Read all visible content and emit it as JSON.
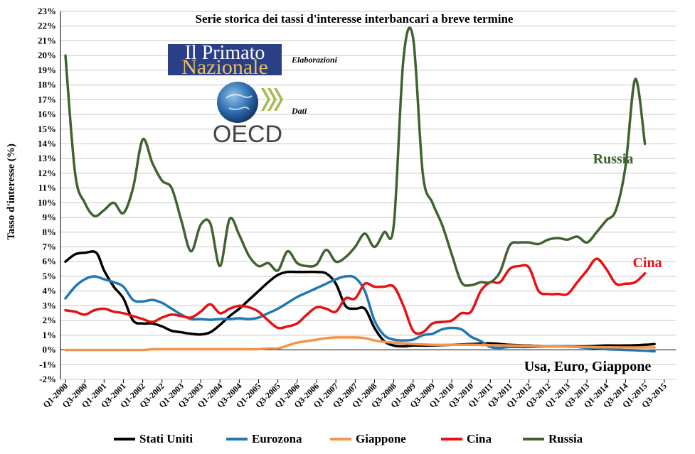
{
  "chart_data": {
    "type": "line",
    "title": "Serie storica dei tassi d'interesse interbancari  a breve termine",
    "ylabel": "Tasso d'interesse (%)",
    "xlabel": "",
    "ylim": [
      -2,
      23
    ],
    "y_ticks": [
      "-2%",
      "-1%",
      "0%",
      "1%",
      "2%",
      "3%",
      "4%",
      "5%",
      "6%",
      "7%",
      "8%",
      "9%",
      "10%",
      "11%",
      "12%",
      "13%",
      "14%",
      "15%",
      "16%",
      "17%",
      "18%",
      "19%",
      "20%",
      "21%",
      "22%",
      "23%"
    ],
    "x_tick_labels": [
      "Q1-2000",
      "Q3-2000",
      "Q1-2001",
      "Q3-2001",
      "Q1-2002",
      "Q3-2002",
      "Q1-2003",
      "Q3-2003",
      "Q1-2004",
      "Q3-2004",
      "Q1-2005",
      "Q3-2005",
      "Q1-2006",
      "Q3-2006",
      "Q1-2007",
      "Q3-2007",
      "Q1-2008",
      "Q3-2008",
      "Q1-2009",
      "Q3-2009",
      "Q1-2010",
      "Q3-2010",
      "Q1-2011",
      "Q3-2011",
      "Q1-2012",
      "Q3-2012",
      "Q1-2013",
      "Q3-2013",
      "Q1-2014",
      "Q3-2014",
      "Q1-2015",
      "Q3-2015"
    ],
    "grid": true,
    "legend_position": "bottom",
    "series": [
      {
        "name": "Stati Uniti",
        "color": "#000000",
        "points": [
          [
            0,
            6.0
          ],
          [
            0.5,
            6.5
          ],
          [
            1,
            6.6
          ],
          [
            1.6,
            6.6
          ],
          [
            2,
            5.4
          ],
          [
            2.5,
            4.3
          ],
          [
            3,
            3.5
          ],
          [
            3.5,
            2.0
          ],
          [
            4,
            1.8
          ],
          [
            4.5,
            1.8
          ],
          [
            5,
            1.6
          ],
          [
            5.5,
            1.3
          ],
          [
            6,
            1.2
          ],
          [
            6.5,
            1.1
          ],
          [
            7,
            1.05
          ],
          [
            7.5,
            1.2
          ],
          [
            8,
            1.7
          ],
          [
            8.5,
            2.3
          ],
          [
            9,
            2.8
          ],
          [
            9.5,
            3.4
          ],
          [
            10,
            4.0
          ],
          [
            10.5,
            4.6
          ],
          [
            11,
            5.1
          ],
          [
            11.5,
            5.3
          ],
          [
            12,
            5.3
          ],
          [
            12.5,
            5.3
          ],
          [
            13,
            5.3
          ],
          [
            13.5,
            5.2
          ],
          [
            14,
            4.5
          ],
          [
            14.5,
            3.0
          ],
          [
            15,
            2.8
          ],
          [
            15.5,
            2.8
          ],
          [
            16,
            1.5
          ],
          [
            16.5,
            0.6
          ],
          [
            17,
            0.3
          ],
          [
            17.5,
            0.25
          ],
          [
            18,
            0.3
          ],
          [
            19,
            0.3
          ],
          [
            20,
            0.35
          ],
          [
            21,
            0.4
          ],
          [
            22,
            0.45
          ],
          [
            23,
            0.35
          ],
          [
            24,
            0.3
          ],
          [
            25,
            0.25
          ],
          [
            26,
            0.25
          ],
          [
            27,
            0.25
          ],
          [
            28,
            0.3
          ],
          [
            29,
            0.3
          ],
          [
            30,
            0.35
          ],
          [
            30.5,
            0.4
          ]
        ]
      },
      {
        "name": "Eurozona",
        "color": "#1f77b4",
        "points": [
          [
            0,
            3.5
          ],
          [
            0.5,
            4.3
          ],
          [
            1,
            4.8
          ],
          [
            1.5,
            5.0
          ],
          [
            2,
            4.8
          ],
          [
            2.5,
            4.6
          ],
          [
            3,
            4.3
          ],
          [
            3.5,
            3.4
          ],
          [
            4,
            3.3
          ],
          [
            4.5,
            3.4
          ],
          [
            5,
            3.2
          ],
          [
            5.5,
            2.8
          ],
          [
            6,
            2.4
          ],
          [
            6.5,
            2.1
          ],
          [
            7,
            2.1
          ],
          [
            7.5,
            2.05
          ],
          [
            8,
            2.1
          ],
          [
            8.5,
            2.1
          ],
          [
            9,
            2.15
          ],
          [
            9.5,
            2.1
          ],
          [
            10,
            2.2
          ],
          [
            10.5,
            2.5
          ],
          [
            11,
            2.8
          ],
          [
            11.5,
            3.2
          ],
          [
            12,
            3.6
          ],
          [
            12.5,
            3.9
          ],
          [
            13,
            4.2
          ],
          [
            13.5,
            4.5
          ],
          [
            14,
            4.8
          ],
          [
            14.5,
            5.0
          ],
          [
            15,
            4.9
          ],
          [
            15.5,
            4.0
          ],
          [
            16,
            2.0
          ],
          [
            16.5,
            1.0
          ],
          [
            17,
            0.7
          ],
          [
            17.5,
            0.65
          ],
          [
            18,
            0.7
          ],
          [
            18.5,
            1.0
          ],
          [
            19,
            1.1
          ],
          [
            19.5,
            1.4
          ],
          [
            20,
            1.5
          ],
          [
            20.5,
            1.4
          ],
          [
            21,
            0.9
          ],
          [
            21.5,
            0.6
          ],
          [
            22,
            0.2
          ],
          [
            22.5,
            0.15
          ],
          [
            23,
            0.2
          ],
          [
            24,
            0.2
          ],
          [
            25,
            0.25
          ],
          [
            26,
            0.25
          ],
          [
            27,
            0.15
          ],
          [
            28,
            0.05
          ],
          [
            29,
            0.0
          ],
          [
            30,
            -0.05
          ],
          [
            30.5,
            -0.1
          ]
        ]
      },
      {
        "name": "Giappone",
        "color": "#f4944a",
        "points": [
          [
            0,
            0.0
          ],
          [
            1,
            0.0
          ],
          [
            2,
            0.0
          ],
          [
            3,
            0.0
          ],
          [
            4,
            0.0
          ],
          [
            4.5,
            0.05
          ],
          [
            5,
            0.05
          ],
          [
            6,
            0.05
          ],
          [
            7,
            0.05
          ],
          [
            8,
            0.05
          ],
          [
            9,
            0.05
          ],
          [
            10,
            0.05
          ],
          [
            10.5,
            0.1
          ],
          [
            11,
            0.1
          ],
          [
            11.5,
            0.3
          ],
          [
            12,
            0.5
          ],
          [
            12.5,
            0.6
          ],
          [
            13,
            0.7
          ],
          [
            13.5,
            0.8
          ],
          [
            14,
            0.85
          ],
          [
            14.5,
            0.85
          ],
          [
            15,
            0.85
          ],
          [
            15.5,
            0.8
          ],
          [
            16,
            0.65
          ],
          [
            16.5,
            0.55
          ],
          [
            17,
            0.5
          ],
          [
            17.5,
            0.45
          ],
          [
            18,
            0.4
          ],
          [
            19,
            0.35
          ],
          [
            20,
            0.35
          ],
          [
            21,
            0.35
          ],
          [
            22,
            0.33
          ],
          [
            23,
            0.3
          ],
          [
            24,
            0.28
          ],
          [
            25,
            0.25
          ],
          [
            26,
            0.22
          ],
          [
            27,
            0.2
          ],
          [
            28,
            0.18
          ],
          [
            29,
            0.17
          ],
          [
            30,
            0.17
          ],
          [
            30.5,
            0.17
          ]
        ]
      },
      {
        "name": "Cina",
        "color": "#e81010",
        "points": [
          [
            0,
            2.7
          ],
          [
            0.5,
            2.6
          ],
          [
            1,
            2.4
          ],
          [
            1.5,
            2.7
          ],
          [
            2,
            2.8
          ],
          [
            2.5,
            2.6
          ],
          [
            3,
            2.5
          ],
          [
            3.5,
            2.3
          ],
          [
            4,
            2.1
          ],
          [
            4.5,
            1.9
          ],
          [
            5,
            2.2
          ],
          [
            5.5,
            2.4
          ],
          [
            6,
            2.3
          ],
          [
            6.5,
            2.2
          ],
          [
            7,
            2.6
          ],
          [
            7.5,
            3.1
          ],
          [
            8,
            2.5
          ],
          [
            8.5,
            2.8
          ],
          [
            9,
            3.0
          ],
          [
            9.5,
            2.9
          ],
          [
            10,
            2.6
          ],
          [
            10.5,
            2.0
          ],
          [
            11,
            1.5
          ],
          [
            11.5,
            1.6
          ],
          [
            12,
            1.8
          ],
          [
            12.5,
            2.4
          ],
          [
            13,
            2.9
          ],
          [
            13.5,
            2.8
          ],
          [
            14,
            2.6
          ],
          [
            14.5,
            3.5
          ],
          [
            15,
            3.5
          ],
          [
            15.5,
            4.5
          ],
          [
            16,
            4.3
          ],
          [
            16.5,
            4.3
          ],
          [
            17,
            4.3
          ],
          [
            17.5,
            3.0
          ],
          [
            18,
            1.3
          ],
          [
            18.5,
            1.2
          ],
          [
            19,
            1.8
          ],
          [
            19.5,
            1.9
          ],
          [
            20,
            2.0
          ],
          [
            20.5,
            2.5
          ],
          [
            21,
            2.6
          ],
          [
            21.5,
            4.0
          ],
          [
            22,
            4.6
          ],
          [
            22.5,
            4.6
          ],
          [
            23,
            5.5
          ],
          [
            23.5,
            5.7
          ],
          [
            24,
            5.6
          ],
          [
            24.5,
            4.0
          ],
          [
            25,
            3.8
          ],
          [
            25.5,
            3.8
          ],
          [
            26,
            3.8
          ],
          [
            26.5,
            4.6
          ],
          [
            27,
            5.4
          ],
          [
            27.5,
            6.2
          ],
          [
            28,
            5.5
          ],
          [
            28.5,
            4.5
          ],
          [
            29,
            4.5
          ],
          [
            29.5,
            4.6
          ],
          [
            30,
            5.2
          ]
        ]
      },
      {
        "name": "Russia",
        "color": "#3f6330",
        "points": [
          [
            0,
            20.0
          ],
          [
            0.5,
            12.0
          ],
          [
            1,
            10.0
          ],
          [
            1.5,
            9.1
          ],
          [
            2,
            9.5
          ],
          [
            2.5,
            10.0
          ],
          [
            3,
            9.3
          ],
          [
            3.5,
            11.0
          ],
          [
            4,
            14.3
          ],
          [
            4.5,
            12.7
          ],
          [
            5,
            11.5
          ],
          [
            5.5,
            11.0
          ],
          [
            6,
            8.8
          ],
          [
            6.5,
            6.7
          ],
          [
            7,
            8.5
          ],
          [
            7.5,
            8.6
          ],
          [
            8,
            5.7
          ],
          [
            8.5,
            8.9
          ],
          [
            9,
            7.8
          ],
          [
            9.5,
            6.4
          ],
          [
            10,
            5.7
          ],
          [
            10.5,
            5.9
          ],
          [
            11,
            5.4
          ],
          [
            11.5,
            6.7
          ],
          [
            12,
            5.9
          ],
          [
            12.5,
            5.7
          ],
          [
            13,
            5.8
          ],
          [
            13.5,
            6.8
          ],
          [
            14,
            6.0
          ],
          [
            14.5,
            6.3
          ],
          [
            15,
            7.0
          ],
          [
            15.5,
            7.9
          ],
          [
            16,
            7.0
          ],
          [
            16.5,
            8.0
          ],
          [
            17,
            8.5
          ],
          [
            17.5,
            19.8
          ],
          [
            18,
            21.2
          ],
          [
            18.5,
            12.0
          ],
          [
            19,
            10.0
          ],
          [
            19.5,
            8.5
          ],
          [
            20,
            6.5
          ],
          [
            20.5,
            4.6
          ],
          [
            21,
            4.4
          ],
          [
            21.5,
            4.6
          ],
          [
            22,
            4.6
          ],
          [
            22.5,
            5.3
          ],
          [
            23,
            7.1
          ],
          [
            23.5,
            7.3
          ],
          [
            24,
            7.3
          ],
          [
            24.5,
            7.2
          ],
          [
            25,
            7.5
          ],
          [
            25.5,
            7.6
          ],
          [
            26,
            7.5
          ],
          [
            26.5,
            7.7
          ],
          [
            27,
            7.3
          ],
          [
            27.5,
            8.0
          ],
          [
            28,
            8.8
          ],
          [
            28.5,
            9.5
          ],
          [
            29,
            12.5
          ],
          [
            29.5,
            18.4
          ],
          [
            30,
            14.0
          ]
        ]
      }
    ],
    "annotations": [
      {
        "text": "Russia",
        "color": "#3f6330"
      },
      {
        "text": "Cina",
        "color": "#e81010"
      },
      {
        "text": "Usa, Euro, Giappone",
        "color": "#000000"
      }
    ]
  },
  "credits": {
    "elaborazioni_label": "Elaborazioni",
    "dati_label": "Dati",
    "logo_primato_line1": "Il Primato",
    "logo_primato_line2": "Nazionale",
    "logo_oecd": "OECD"
  }
}
